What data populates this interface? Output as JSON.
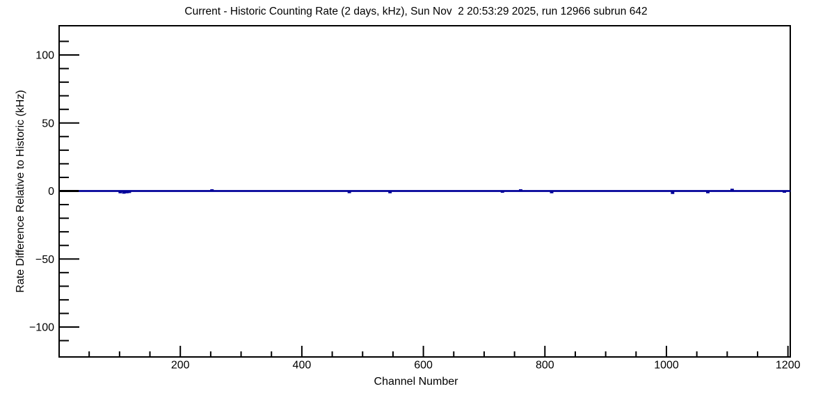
{
  "chart_data": {
    "type": "line",
    "title": "Current - Historic Counting Rate (2 days, kHz), Sun Nov  2 20:53:29 2025, run 12966 subrun 642",
    "xlabel": "Channel Number",
    "ylabel": "Rate Difference Relative to Historic (kHz)",
    "xlim": [
      0,
      1204
    ],
    "ylim": [
      -122,
      122
    ],
    "grid": false,
    "legend": null,
    "x_axis": {
      "major_ticks": [
        200,
        400,
        600,
        800,
        1000,
        1200
      ],
      "major_labels": [
        "200",
        "400",
        "600",
        "800",
        "1000",
        "1200"
      ],
      "minor_step": 50
    },
    "y_axis": {
      "major_ticks": [
        100,
        50,
        0,
        -50,
        -100
      ],
      "major_labels": [
        "100",
        "50",
        "0",
        "−50",
        "−100"
      ],
      "minor_step": 10,
      "minor_range": [
        -110,
        110
      ]
    },
    "colors": {
      "frame": "#000000",
      "baseline_segment": "#000000",
      "series_line": "#000099"
    },
    "series": [
      {
        "name": "historic baseline segment",
        "type": "segment",
        "color": "#000000",
        "points": [
          [
            0,
            0
          ],
          [
            33,
            0
          ]
        ]
      },
      {
        "name": "current minus historic rate",
        "type": "histogram-line",
        "color": "#000099",
        "baseline": 0,
        "ch_start": 33,
        "ch_end": 1204,
        "blips": [
          [
            101,
            -1.0
          ],
          [
            107,
            -1.3
          ],
          [
            112,
            -1.0
          ],
          [
            116,
            -0.8
          ],
          [
            252,
            0.6
          ],
          [
            478,
            -0.9
          ],
          [
            545,
            -1.0
          ],
          [
            730,
            -0.6
          ],
          [
            760,
            0.6
          ],
          [
            811,
            -1.0
          ],
          [
            1010,
            -1.5
          ],
          [
            1068,
            -1.0
          ],
          [
            1108,
            1.0
          ],
          [
            1194,
            -0.6
          ]
        ]
      }
    ]
  }
}
